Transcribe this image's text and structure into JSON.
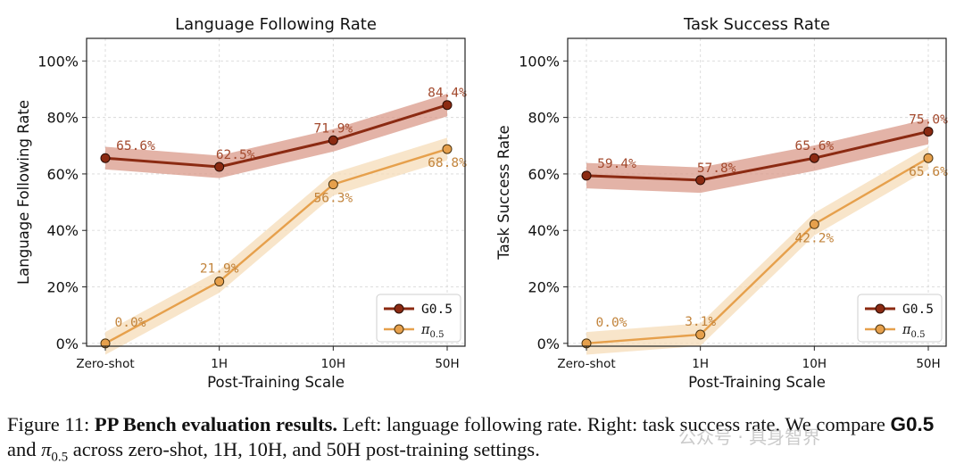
{
  "chart_data": [
    {
      "type": "line",
      "title": "Language Following Rate",
      "xlabel": "Post-Training Scale",
      "ylabel": "Language Following Rate",
      "categories": [
        "Zero-shot",
        "1H",
        "10H",
        "50H"
      ],
      "ylim": [
        -1,
        108
      ],
      "yticks": [
        "0%",
        "20%",
        "40%",
        "60%",
        "80%",
        "100%"
      ],
      "grid": true,
      "legend_position": "lower-right",
      "series": [
        {
          "name": "G0.5",
          "values": [
            65.6,
            62.5,
            71.9,
            84.4
          ],
          "labels": [
            "65.6%",
            "62.5%",
            "71.9%",
            "84.4%"
          ],
          "band": 4,
          "color": "#8b2a12",
          "band_color": "#d9998a"
        },
        {
          "name": "π0.5",
          "values": [
            0.0,
            21.9,
            56.3,
            68.8
          ],
          "labels": [
            "0.0%",
            "21.9%",
            "56.3%",
            "68.8%"
          ],
          "band": 4,
          "color": "#e6a04c",
          "band_color": "#f6dcb8"
        }
      ]
    },
    {
      "type": "line",
      "title": "Task Success Rate",
      "xlabel": "Post-Training Scale",
      "ylabel": "Task Success Rate",
      "categories": [
        "Zero-shot",
        "1H",
        "10H",
        "50H"
      ],
      "ylim": [
        -1,
        108
      ],
      "yticks": [
        "0%",
        "20%",
        "40%",
        "60%",
        "80%",
        "100%"
      ],
      "grid": true,
      "legend_position": "lower-right",
      "series": [
        {
          "name": "G0.5",
          "values": [
            59.4,
            57.8,
            65.6,
            75.0
          ],
          "labels": [
            "59.4%",
            "57.8%",
            "65.6%",
            "75.0%"
          ],
          "band": 4.5,
          "color": "#8b2a12",
          "band_color": "#d9998a"
        },
        {
          "name": "π0.5",
          "values": [
            0.0,
            3.1,
            42.2,
            65.6
          ],
          "labels": [
            "0.0%",
            "3.1%",
            "42.2%",
            "65.6%"
          ],
          "band": 4,
          "color": "#e6a04c",
          "band_color": "#f6dcb8"
        }
      ]
    }
  ],
  "caption": {
    "prefix": "Figure 11: ",
    "bold": "PP Bench evaluation results.",
    "text1": " Left: language following rate. Right: task success rate. We compare ",
    "model": "G0.5",
    "text2": " and ",
    "pi": "π",
    "pi_sub": "0.5",
    "text3": " across zero-shot, 1H, 10H, and 50H post-training settings."
  },
  "watermark": "公众号 · 具身智界"
}
